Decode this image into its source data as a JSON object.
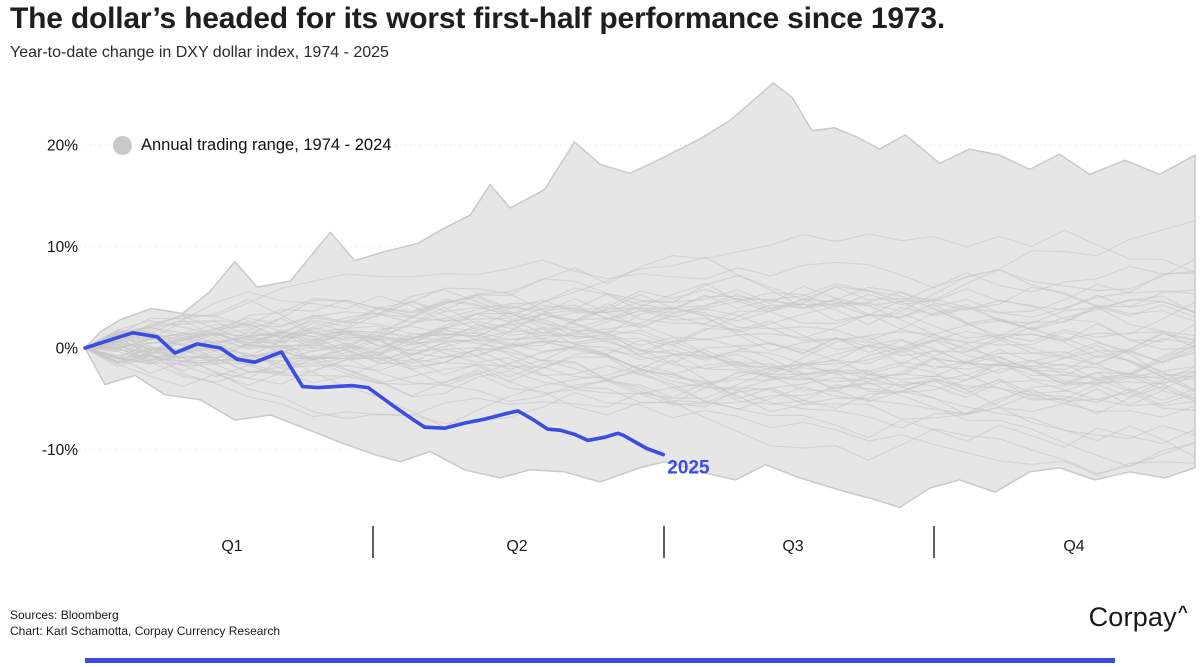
{
  "header": {
    "title": "The dollar’s headed for its worst first-half performance since 1973.",
    "subtitle": "Year-to-date change in DXY dollar index, 1974 - 2025"
  },
  "legend": {
    "label": "Annual trading range, 1974 - 2024"
  },
  "footer": {
    "sources": "Sources: Bloomberg",
    "credit": "Chart: Karl Schamotta, Corpay Currency Research",
    "logo_text": "Corpay",
    "logo_mark": "^"
  },
  "colors": {
    "accent_blue": "#3a4ce1",
    "range_fill": "#e6e6e6",
    "range_edge": "#c9c9c9",
    "spaghetti": "#c6c6c6",
    "gridline": "#dcdcdc",
    "axis_text": "#111111"
  },
  "chart_data": {
    "type": "area+line",
    "title": "Year-to-date change in DXY dollar index, 1974 - 2025",
    "x_unit": "fraction of trading year (0 = Jan 1, 1 = Dec 31)",
    "y_unit": "percent change year-to-date",
    "ylim": [
      -18,
      28
    ],
    "y_tick_values": [
      20,
      10,
      0,
      -10
    ],
    "y_tick_labels": [
      "20%",
      "10%",
      "0%",
      "-10%"
    ],
    "x_labels": [
      "Q1",
      "Q2",
      "Q3",
      "Q4"
    ],
    "grid": "dotted horizontal",
    "legend_position": "top-left",
    "line_2025_label": "2025",
    "range_top": [
      [
        0.0,
        0.0
      ],
      [
        0.014,
        1.6
      ],
      [
        0.032,
        2.8
      ],
      [
        0.06,
        3.9
      ],
      [
        0.088,
        3.4
      ],
      [
        0.112,
        5.5
      ],
      [
        0.135,
        8.5
      ],
      [
        0.155,
        6.0
      ],
      [
        0.185,
        6.6
      ],
      [
        0.221,
        11.4
      ],
      [
        0.243,
        8.6
      ],
      [
        0.27,
        9.5
      ],
      [
        0.3,
        10.3
      ],
      [
        0.32,
        11.6
      ],
      [
        0.347,
        13.1
      ],
      [
        0.365,
        16.1
      ],
      [
        0.383,
        13.8
      ],
      [
        0.414,
        15.6
      ],
      [
        0.441,
        20.3
      ],
      [
        0.464,
        18.1
      ],
      [
        0.491,
        17.2
      ],
      [
        0.518,
        18.6
      ],
      [
        0.554,
        20.6
      ],
      [
        0.581,
        22.4
      ],
      [
        0.62,
        26.1
      ],
      [
        0.637,
        24.7
      ],
      [
        0.655,
        21.4
      ],
      [
        0.675,
        21.7
      ],
      [
        0.695,
        20.8
      ],
      [
        0.716,
        19.6
      ],
      [
        0.739,
        21.0
      ],
      [
        0.77,
        18.2
      ],
      [
        0.797,
        19.6
      ],
      [
        0.824,
        19.0
      ],
      [
        0.851,
        17.6
      ],
      [
        0.878,
        19.1
      ],
      [
        0.905,
        17.1
      ],
      [
        0.937,
        18.5
      ],
      [
        0.968,
        17.1
      ],
      [
        1.0,
        19.0
      ]
    ],
    "range_bottom": [
      [
        0.0,
        0.0
      ],
      [
        0.018,
        -3.6
      ],
      [
        0.045,
        -2.7
      ],
      [
        0.072,
        -4.6
      ],
      [
        0.104,
        -5.1
      ],
      [
        0.135,
        -7.1
      ],
      [
        0.167,
        -6.6
      ],
      [
        0.198,
        -7.9
      ],
      [
        0.23,
        -9.3
      ],
      [
        0.261,
        -10.5
      ],
      [
        0.284,
        -11.2
      ],
      [
        0.311,
        -10.2
      ],
      [
        0.342,
        -12.0
      ],
      [
        0.374,
        -12.8
      ],
      [
        0.401,
        -12.0
      ],
      [
        0.432,
        -12.2
      ],
      [
        0.464,
        -13.2
      ],
      [
        0.5,
        -11.8
      ],
      [
        0.523,
        -11.2
      ],
      [
        0.554,
        -12.2
      ],
      [
        0.586,
        -13.0
      ],
      [
        0.613,
        -11.5
      ],
      [
        0.644,
        -12.8
      ],
      [
        0.68,
        -14.0
      ],
      [
        0.707,
        -14.8
      ],
      [
        0.734,
        -15.7
      ],
      [
        0.761,
        -13.8
      ],
      [
        0.788,
        -13.0
      ],
      [
        0.82,
        -14.2
      ],
      [
        0.851,
        -12.2
      ],
      [
        0.878,
        -11.8
      ],
      [
        0.91,
        -13.0
      ],
      [
        0.941,
        -12.2
      ],
      [
        0.973,
        -12.8
      ],
      [
        1.0,
        -11.8
      ]
    ],
    "series_2025": [
      [
        0.0,
        0.0
      ],
      [
        0.043,
        1.5
      ],
      [
        0.065,
        1.1
      ],
      [
        0.081,
        -0.5
      ],
      [
        0.101,
        0.4
      ],
      [
        0.122,
        0.0
      ],
      [
        0.137,
        -1.1
      ],
      [
        0.153,
        -1.4
      ],
      [
        0.177,
        -0.4
      ],
      [
        0.196,
        -3.8
      ],
      [
        0.21,
        -3.9
      ],
      [
        0.241,
        -3.7
      ],
      [
        0.255,
        -3.9
      ],
      [
        0.279,
        -5.8
      ],
      [
        0.295,
        -7.0
      ],
      [
        0.306,
        -7.8
      ],
      [
        0.324,
        -7.9
      ],
      [
        0.342,
        -7.4
      ],
      [
        0.36,
        -7.0
      ],
      [
        0.378,
        -6.5
      ],
      [
        0.39,
        -6.2
      ],
      [
        0.403,
        -7.0
      ],
      [
        0.417,
        -8.0
      ],
      [
        0.428,
        -8.1
      ],
      [
        0.441,
        -8.5
      ],
      [
        0.453,
        -9.1
      ],
      [
        0.468,
        -8.8
      ],
      [
        0.48,
        -8.4
      ],
      [
        0.485,
        -8.6
      ],
      [
        0.506,
        -9.9
      ],
      [
        0.521,
        -10.5
      ]
    ],
    "spaghetti_years": 50,
    "spaghetti_seed": 11
  }
}
